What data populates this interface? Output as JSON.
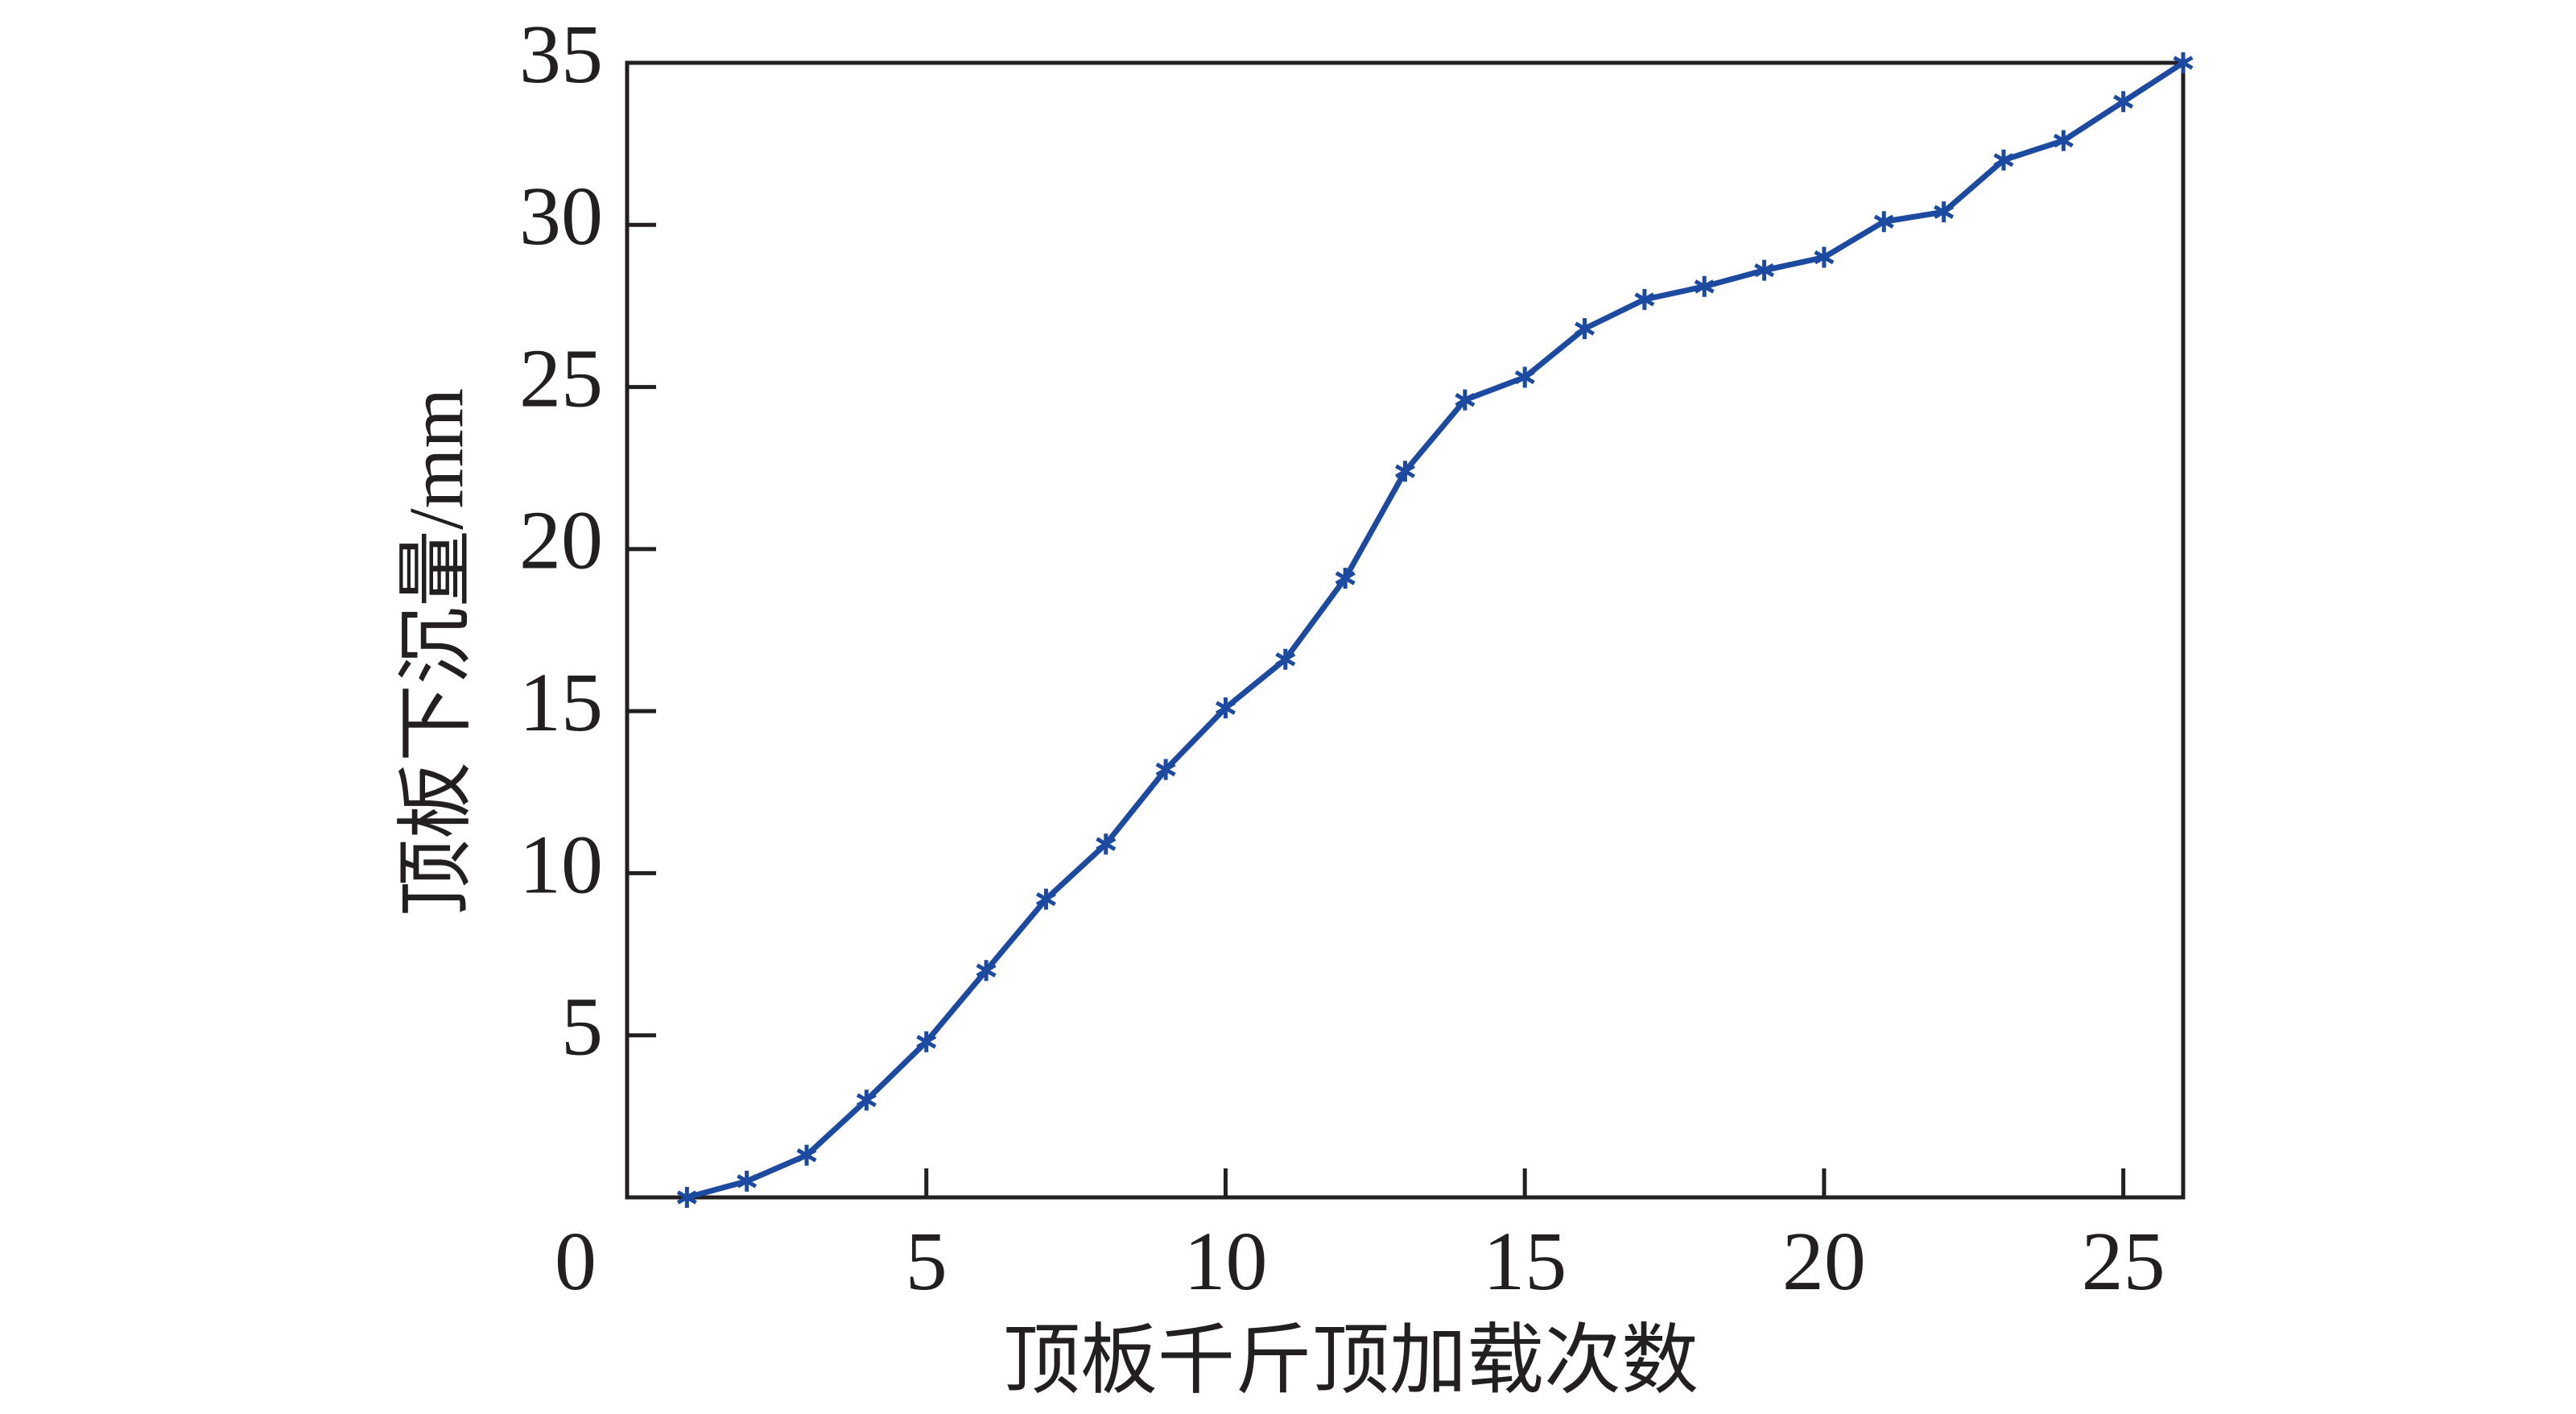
{
  "chart_data": {
    "type": "line",
    "x_label": "顶板千斤顶加载次数",
    "y_label": "顶板下沉量/mm",
    "x": [
      1,
      2,
      3,
      4,
      5,
      6,
      7,
      8,
      9,
      10,
      11,
      12,
      13,
      14,
      15,
      16,
      17,
      18,
      19,
      20,
      21,
      22,
      23,
      24,
      25,
      26
    ],
    "series": [
      {
        "color": "#1c4aa0",
        "values": [
          0,
          0.5,
          1.3,
          3.0,
          4.8,
          7.0,
          9.2,
          10.9,
          13.2,
          15.1,
          16.6,
          19.1,
          22.4,
          24.6,
          25.3,
          26.8,
          27.7,
          28.1,
          28.6,
          29.0,
          30.1,
          30.4,
          32.0,
          32.6,
          33.8,
          35
        ]
      }
    ],
    "xlim": [
      0,
      26
    ],
    "xticks": [
      0,
      5,
      10,
      15,
      20,
      25
    ],
    "ylim": [
      0,
      35
    ],
    "yticks": [
      5,
      10,
      15,
      20,
      25,
      30,
      35
    ],
    "grid": false
  }
}
